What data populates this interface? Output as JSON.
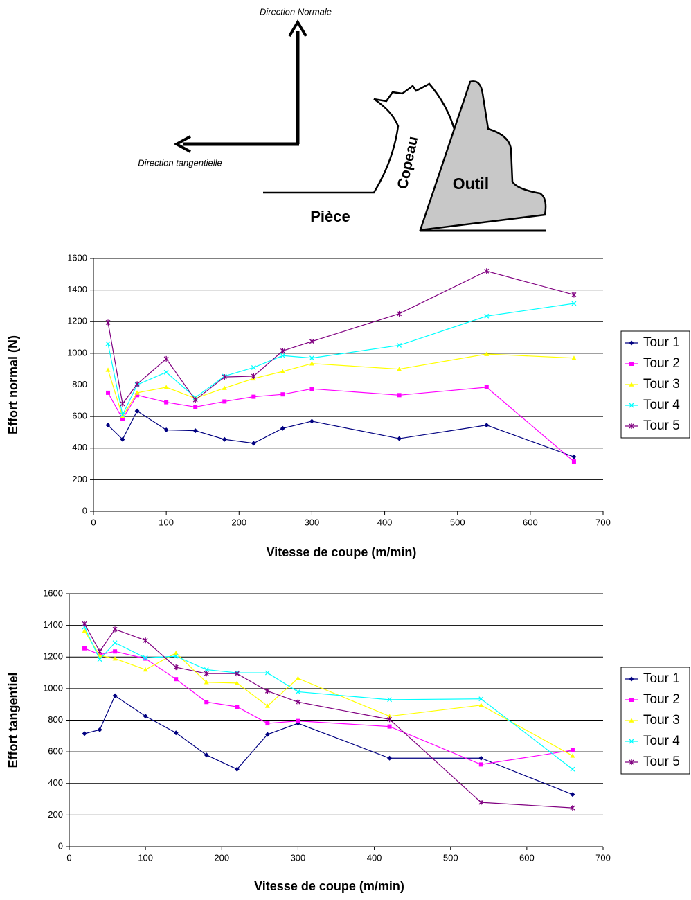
{
  "diagram": {
    "normal": "Direction Normale",
    "tangential": "Direction tangentielle",
    "piece": "Pièce",
    "chip": "Copeau",
    "tool": "Outil"
  },
  "chart_data": [
    {
      "type": "line",
      "x_label": "Vitesse de coupe (m/min)",
      "y_label": "Effort normal (N)",
      "x": [
        20,
        40,
        60,
        100,
        140,
        180,
        220,
        260,
        300,
        420,
        540,
        660
      ],
      "series": [
        {
          "name": "Tour 1",
          "color": "#000080",
          "marker": "diamond",
          "values": [
            545,
            455,
            635,
            515,
            510,
            455,
            430,
            525,
            570,
            460,
            545,
            345
          ]
        },
        {
          "name": "Tour 2",
          "color": "#ff00ff",
          "marker": "square",
          "values": [
            750,
            585,
            735,
            690,
            660,
            695,
            725,
            740,
            775,
            735,
            785,
            315
          ]
        },
        {
          "name": "Tour 3",
          "color": "#ffff00",
          "marker": "triangle",
          "values": [
            895,
            600,
            750,
            785,
            715,
            780,
            840,
            885,
            935,
            900,
            995,
            970
          ]
        },
        {
          "name": "Tour 4",
          "color": "#00ffff",
          "marker": "x",
          "values": [
            1060,
            610,
            800,
            880,
            720,
            855,
            910,
            985,
            970,
            1050,
            1235,
            1315
          ]
        },
        {
          "name": "Tour 5",
          "color": "#800080",
          "marker": "star",
          "values": [
            1195,
            680,
            805,
            965,
            705,
            850,
            855,
            1015,
            1075,
            1250,
            1520,
            1370
          ]
        }
      ],
      "xlim": [
        0,
        700
      ],
      "xticks": [
        0,
        100,
        200,
        300,
        400,
        500,
        600,
        700
      ],
      "ylim": [
        0,
        1600
      ],
      "yticks": [
        0,
        200,
        400,
        600,
        800,
        1000,
        1200,
        1400,
        1600
      ],
      "grid": true,
      "legend": "right"
    },
    {
      "type": "line",
      "x_label": "Vitesse de coupe (m/min)",
      "y_label": "Effort tangentiel",
      "x": [
        20,
        40,
        60,
        100,
        140,
        180,
        220,
        260,
        300,
        420,
        540,
        660
      ],
      "series": [
        {
          "name": "Tour 1",
          "color": "#000080",
          "marker": "diamond",
          "values": [
            715,
            740,
            955,
            825,
            720,
            580,
            490,
            710,
            780,
            560,
            560,
            330
          ]
        },
        {
          "name": "Tour 2",
          "color": "#ff00ff",
          "marker": "square",
          "values": [
            1255,
            1215,
            1235,
            1190,
            1060,
            915,
            885,
            780,
            795,
            760,
            520,
            610
          ]
        },
        {
          "name": "Tour 3",
          "color": "#ffff00",
          "marker": "triangle",
          "values": [
            1365,
            1210,
            1190,
            1120,
            1225,
            1040,
            1035,
            890,
            1065,
            825,
            895,
            575
          ]
        },
        {
          "name": "Tour 4",
          "color": "#00ffff",
          "marker": "x",
          "values": [
            1390,
            1185,
            1290,
            1195,
            1205,
            1120,
            1100,
            1100,
            980,
            930,
            935,
            490
          ]
        },
        {
          "name": "Tour 5",
          "color": "#800080",
          "marker": "star",
          "values": [
            1410,
            1235,
            1375,
            1305,
            1135,
            1095,
            1095,
            985,
            915,
            805,
            280,
            245
          ]
        }
      ],
      "xlim": [
        0,
        700
      ],
      "xticks": [
        0,
        100,
        200,
        300,
        400,
        500,
        600,
        700
      ],
      "ylim": [
        0,
        1600
      ],
      "yticks": [
        0,
        200,
        400,
        600,
        800,
        1000,
        1200,
        1400,
        1600
      ],
      "grid": true,
      "legend": "right"
    }
  ]
}
